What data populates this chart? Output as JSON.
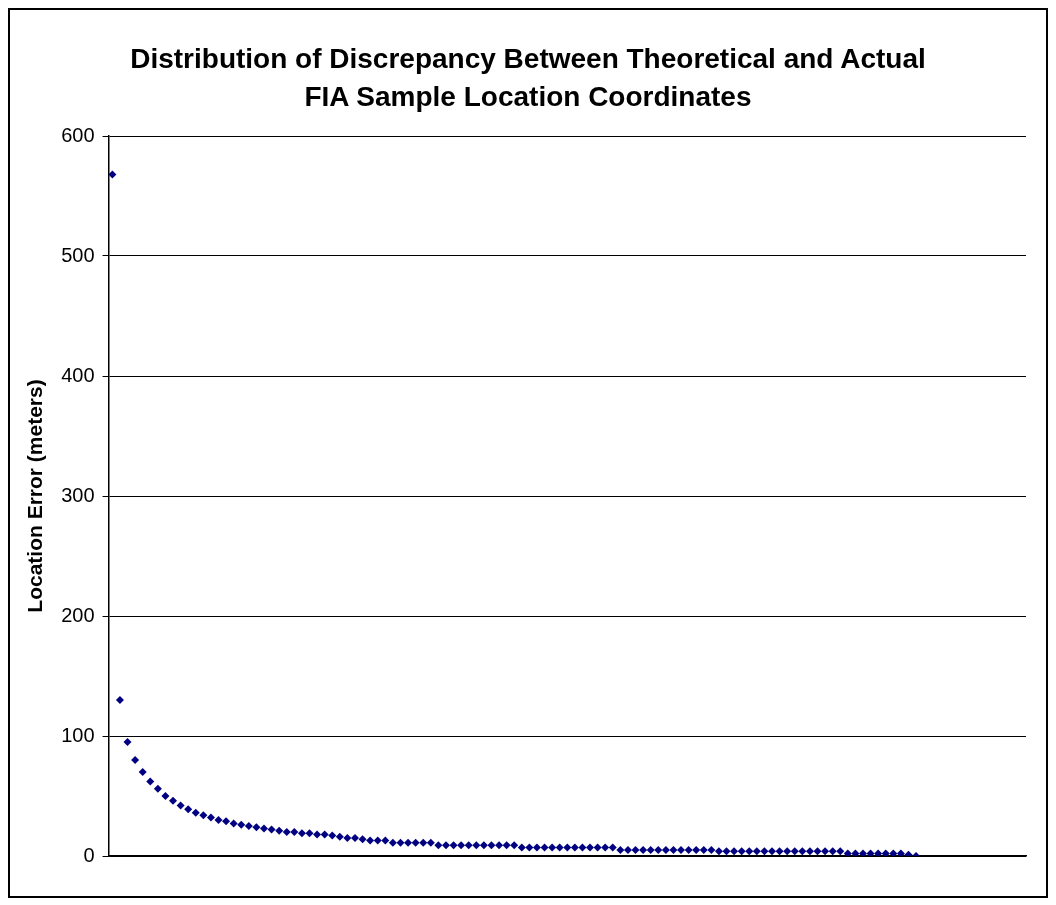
{
  "chart_data": {
    "type": "scatter",
    "title": "Distribution of Discrepancy Between Theoretical and Actual FIA Sample Location Coordinates",
    "ylabel": "Location Error (meters)",
    "categories": [
      null,
      null,
      null,
      null,
      null,
      null,
      null,
      null,
      null,
      null,
      null,
      null,
      null,
      null,
      null,
      null,
      null,
      null,
      null,
      null,
      null,
      null,
      null,
      null,
      null,
      null,
      null,
      null,
      null,
      null,
      null,
      null,
      null,
      null,
      null,
      null,
      null,
      null,
      null,
      null,
      null,
      null,
      null,
      null,
      null,
      null,
      null,
      null,
      null,
      null,
      null,
      null,
      null,
      null,
      null,
      null,
      null,
      null,
      null,
      null,
      null,
      null,
      null,
      null,
      null,
      null,
      null,
      null,
      null,
      null,
      null,
      null,
      null,
      null,
      null,
      null,
      null,
      null,
      null,
      null,
      null,
      null,
      null,
      null,
      null,
      null,
      null,
      null,
      null,
      null,
      null,
      null,
      null,
      null,
      null,
      null,
      null,
      null,
      null,
      null,
      null,
      null,
      null,
      null,
      null,
      null,
      null,
      null,
      null,
      null,
      null,
      null,
      null,
      null,
      null,
      null,
      null,
      null,
      null,
      null,
      null
    ],
    "series": [
      {
        "color": "#000080",
        "values": [
          568,
          130,
          95,
          80,
          70,
          62,
          56,
          50,
          46,
          42,
          39,
          36,
          34,
          32,
          30,
          29,
          27,
          26,
          25,
          24,
          23,
          22,
          21,
          20,
          20,
          19,
          19,
          18,
          18,
          17,
          16,
          15,
          15,
          14,
          13,
          13,
          13,
          11,
          11,
          11,
          11,
          11,
          11,
          9,
          9,
          9,
          9,
          9,
          9,
          9,
          9,
          9,
          9,
          9,
          7,
          7,
          7,
          7,
          7,
          7,
          7,
          7,
          7,
          7,
          7,
          7,
          7,
          5,
          5,
          5,
          5,
          5,
          5,
          5,
          5,
          5,
          5,
          5,
          5,
          5,
          4,
          4,
          4,
          4,
          4,
          4,
          4,
          4,
          4,
          4,
          4,
          4,
          4,
          4,
          4,
          4,
          4,
          2,
          2,
          2,
          2,
          2,
          2,
          2,
          2,
          1,
          0,
          null,
          null,
          null,
          null,
          null,
          null,
          null,
          null,
          null,
          null,
          null,
          null,
          null,
          null
        ]
      }
    ],
    "ylim": [
      0,
      600
    ],
    "yticks": [
      0,
      100,
      200,
      300,
      400,
      500,
      600
    ],
    "grid": "y",
    "marker": "diamond",
    "legend": false,
    "tick_labels": "y"
  }
}
